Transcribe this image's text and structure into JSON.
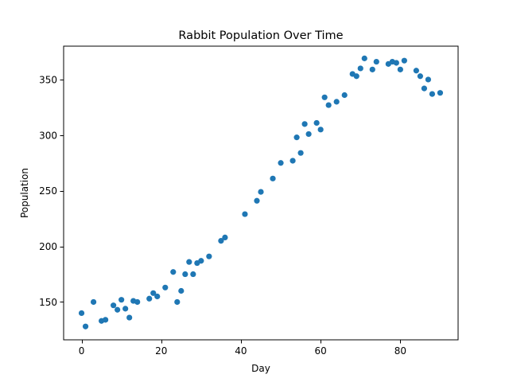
{
  "chart_data": {
    "type": "scatter",
    "title": "Rabbit Population Over Time",
    "xlabel": "Day",
    "ylabel": "Population",
    "xlim": [
      -4.5,
      94.5
    ],
    "ylim": [
      116,
      380
    ],
    "xticks": [
      0,
      20,
      40,
      60,
      80
    ],
    "yticks": [
      150,
      200,
      250,
      300,
      350
    ],
    "grid": false,
    "marker_color": "#1f77b4",
    "series": [
      {
        "x": [
          0,
          1,
          3,
          5,
          6,
          8,
          9,
          10,
          11,
          12,
          13,
          14,
          17,
          18,
          19,
          21,
          23,
          24,
          25,
          26,
          27,
          28,
          29,
          30,
          32,
          35,
          36,
          41,
          44,
          45,
          48,
          50,
          53,
          54,
          55,
          56,
          57,
          59,
          60,
          61,
          62,
          64,
          66,
          68,
          69,
          70,
          71,
          73,
          74,
          77,
          78,
          79,
          80,
          81,
          84,
          85,
          86,
          87,
          88,
          90
        ],
        "y": [
          140,
          128,
          150,
          133,
          134,
          147,
          143,
          152,
          144,
          136,
          151,
          150,
          153,
          158,
          155,
          163,
          177,
          150,
          160,
          175,
          186,
          175,
          185,
          187,
          191,
          205,
          208,
          229,
          241,
          249,
          261,
          275,
          277,
          298,
          284,
          310,
          301,
          311,
          305,
          334,
          327,
          330,
          336,
          355,
          353,
          360,
          369,
          359,
          366,
          364,
          366,
          365,
          359,
          367,
          358,
          353,
          342,
          350,
          337,
          338
        ]
      }
    ]
  }
}
